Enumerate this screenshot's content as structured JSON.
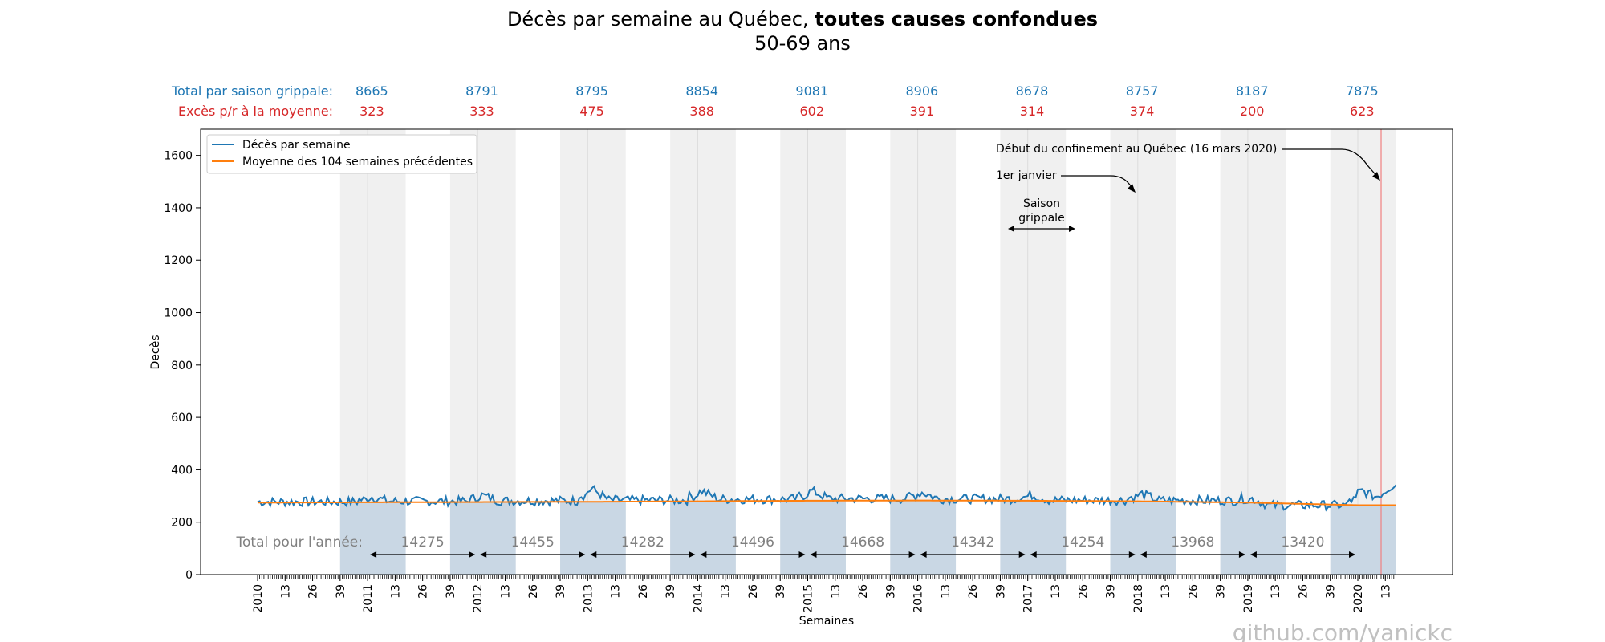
{
  "title": {
    "prefix": "Décès par semaine au Québec, ",
    "bold": "toutes causes confondues",
    "subtitle": "50-69 ans"
  },
  "season_rows": {
    "total_label": "Total par saison grippale:",
    "excess_label": "Excès p/r à la moyenne:",
    "totals": [
      "8665",
      "8791",
      "8795",
      "8854",
      "9081",
      "8906",
      "8678",
      "8757",
      "8187",
      "7875"
    ],
    "excess": [
      "323",
      "333",
      "475",
      "388",
      "602",
      "391",
      "314",
      "374",
      "200",
      "623"
    ],
    "total_color": "#1f77b4",
    "excess_color": "#d62728"
  },
  "year_totals": {
    "label": "Total pour l'année:",
    "values": [
      "14275",
      "14455",
      "14282",
      "14496",
      "14668",
      "14342",
      "14254",
      "13968",
      "13420"
    ]
  },
  "annotations": {
    "confinement": "Début du confinement au Québec (16 mars 2020)",
    "jan1": "1er janvier",
    "season_line1": "Saison",
    "season_line2": "grippale"
  },
  "watermark": "github.com/yanickc",
  "colors": {
    "series": "#1f77b4",
    "average": "#ff7f0e",
    "season_band": "#f0f0f0",
    "area_fill": "#c9d7e4",
    "confinement_line": "#f08080"
  },
  "chart_data": {
    "type": "line",
    "xlabel": "Semaines",
    "ylabel": "Decès",
    "ylim": [
      0,
      1700
    ],
    "yticks": [
      0,
      200,
      400,
      600,
      800,
      1000,
      1200,
      1400,
      1600
    ],
    "x_start_year": 2010,
    "x_end": "2020 semaine 18",
    "x_tick_labels_per_year": [
      "2010",
      "13",
      "26",
      "39"
    ],
    "years": [
      "2010",
      "2011",
      "2012",
      "2013",
      "2014",
      "2015",
      "2016",
      "2017",
      "2018",
      "2019",
      "2020"
    ],
    "legend_position": "top-left",
    "grid": false,
    "series": [
      {
        "name": "Décès par semaine",
        "color": "#1f77b4",
        "yearly_mean_weekly": [
          278,
          280,
          282,
          284,
          288,
          290,
          289,
          284,
          283,
          265,
          290
        ],
        "season_peaks": [
          310,
          320,
          365,
          345,
          345,
          335,
          320,
          330,
          310,
          345
        ]
      },
      {
        "name": "Moyenne des 104 semaines précédentes",
        "color": "#ff7f0e",
        "values_by_year": [
          275,
          276,
          277,
          278,
          280,
          282,
          283,
          282,
          280,
          275,
          265
        ]
      }
    ],
    "season_totals": [
      8665,
      8791,
      8795,
      8854,
      9081,
      8906,
      8678,
      8757,
      8187,
      7875
    ],
    "season_excess": [
      323,
      333,
      475,
      388,
      602,
      391,
      314,
      374,
      200,
      623
    ],
    "year_totals": [
      14275,
      14455,
      14282,
      14496,
      14668,
      14342,
      14254,
      13968,
      13420
    ]
  }
}
